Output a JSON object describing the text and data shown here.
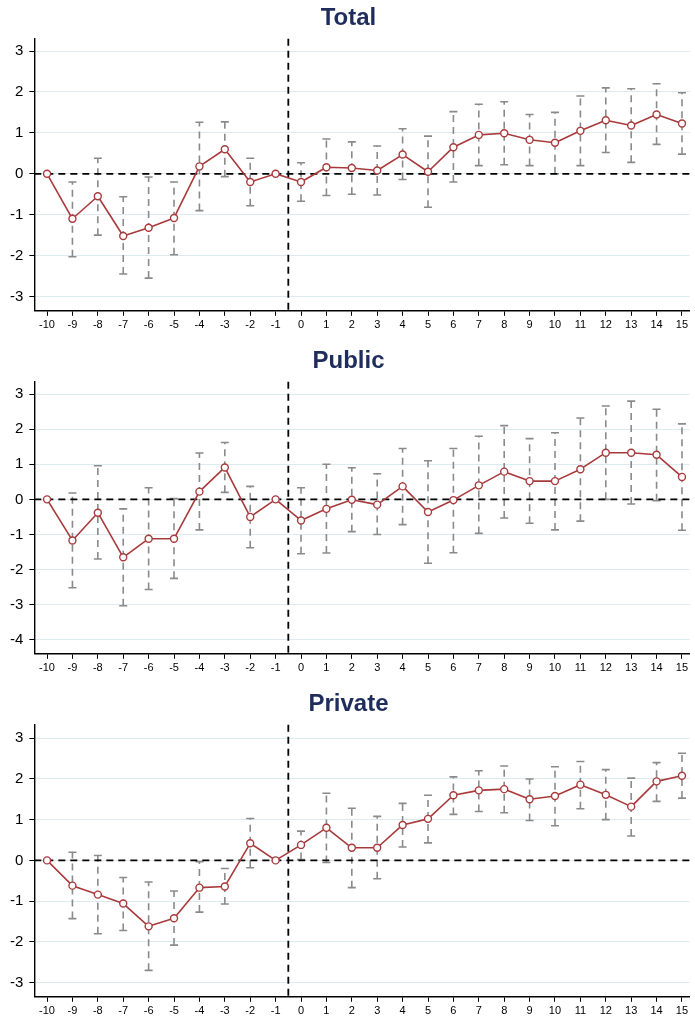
{
  "chart_data": [
    {
      "type": "line",
      "title": "Total",
      "x": [
        -10,
        -9,
        -8,
        -7,
        -6,
        -5,
        -4,
        -3,
        -2,
        -1,
        0,
        1,
        2,
        3,
        4,
        5,
        6,
        7,
        8,
        9,
        10,
        11,
        12,
        13,
        14,
        15
      ],
      "series": [
        {
          "color": "#a83a3c",
          "values": [
            0,
            -1.1,
            -0.55,
            -1.52,
            -1.32,
            -1.08,
            0.18,
            0.6,
            -0.2,
            0,
            -0.2,
            0.16,
            0.14,
            0.08,
            0.47,
            0.05,
            0.65,
            0.95,
            0.99,
            0.83,
            0.76,
            1.05,
            1.31,
            1.18,
            1.45,
            1.23
          ],
          "errors": [
            null,
            [
              -2.03,
              -0.2
            ],
            [
              -1.5,
              0.38
            ],
            [
              -2.45,
              -0.56
            ],
            [
              -2.55,
              -0.08
            ],
            [
              -1.98,
              -0.2
            ],
            [
              -0.9,
              1.26
            ],
            [
              -0.07,
              1.27
            ],
            [
              -0.78,
              0.38
            ],
            null,
            [
              -0.67,
              0.27
            ],
            [
              -0.53,
              0.85
            ],
            [
              -0.5,
              0.78
            ],
            [
              -0.52,
              0.68
            ],
            [
              -0.14,
              1.1
            ],
            [
              -0.82,
              0.92
            ],
            [
              -0.2,
              1.52
            ],
            [
              0.2,
              1.7
            ],
            [
              0.22,
              1.76
            ],
            [
              0.2,
              1.45
            ],
            [
              0,
              1.5
            ],
            [
              0.2,
              1.9
            ],
            [
              0.52,
              2.1
            ],
            [
              0.28,
              2.08
            ],
            [
              0.72,
              2.2
            ],
            [
              0.48,
              1.98
            ]
          ]
        }
      ],
      "xlim": [
        -10.5,
        15.3
      ],
      "xticks": [
        -10,
        -9,
        -8,
        -7,
        -6,
        -5,
        -4,
        -3,
        -2,
        -1,
        0,
        1,
        2,
        3,
        4,
        5,
        6,
        7,
        8,
        9,
        10,
        11,
        12,
        13,
        14,
        15
      ],
      "ylim": [
        -3.35,
        3.3
      ],
      "yticks": [
        -3,
        -2,
        -1,
        0,
        1,
        2,
        3
      ],
      "grid": "y",
      "marker": "circle",
      "line_style": "solid",
      "legend": false,
      "ref_lines": [
        {
          "axis": "x",
          "value": -0.5,
          "line_style": "dashed",
          "color": "#000000"
        },
        {
          "axis": "y",
          "value": 0,
          "line_style": "dashed",
          "color": "#000000"
        }
      ]
    },
    {
      "type": "line",
      "title": "Public",
      "x": [
        -10,
        -9,
        -8,
        -7,
        -6,
        -5,
        -4,
        -3,
        -2,
        -1,
        0,
        1,
        2,
        3,
        4,
        5,
        6,
        7,
        8,
        9,
        10,
        11,
        12,
        13,
        14,
        15
      ],
      "series": [
        {
          "color": "#a83a3c",
          "values": [
            0,
            -1.17,
            -0.38,
            -1.65,
            -1.12,
            -1.12,
            0.22,
            0.91,
            -0.5,
            0,
            -0.6,
            -0.27,
            -0.01,
            -0.15,
            0.37,
            -0.36,
            -0.02,
            0.4,
            0.79,
            0.52,
            0.52,
            0.86,
            1.33,
            1.33,
            1.27,
            0.64
          ],
          "errors": [
            null,
            [
              -2.52,
              0.18
            ],
            [
              -1.7,
              0.96
            ],
            [
              -3.03,
              -0.27
            ],
            [
              -2.57,
              0.33
            ],
            [
              -2.25,
              0.02
            ],
            [
              -0.87,
              1.32
            ],
            [
              0.2,
              1.62
            ],
            [
              -1.38,
              0.37
            ],
            null,
            [
              -1.55,
              0.33
            ],
            [
              -1.53,
              1.0
            ],
            [
              -0.92,
              0.9
            ],
            [
              -1.0,
              0.73
            ],
            [
              -0.72,
              1.45
            ],
            [
              -1.82,
              1.1
            ],
            [
              -1.52,
              1.45
            ],
            [
              -0.97,
              1.8
            ],
            [
              -0.53,
              2.1
            ],
            [
              -0.68,
              1.73
            ],
            [
              -0.87,
              1.9
            ],
            [
              -0.62,
              2.32
            ],
            [
              0,
              2.66
            ],
            [
              -0.13,
              2.8
            ],
            [
              -0.04,
              2.57
            ],
            [
              -0.88,
              2.15
            ]
          ]
        }
      ],
      "xlim": [
        -10.5,
        15.3
      ],
      "xticks": [
        -10,
        -9,
        -8,
        -7,
        -6,
        -5,
        -4,
        -3,
        -2,
        -1,
        0,
        1,
        2,
        3,
        4,
        5,
        6,
        7,
        8,
        9,
        10,
        11,
        12,
        13,
        14,
        15
      ],
      "ylim": [
        -4.4,
        3.35
      ],
      "yticks": [
        -4,
        -3,
        -2,
        -1,
        0,
        1,
        2,
        3
      ],
      "grid": "y",
      "marker": "circle",
      "line_style": "solid",
      "legend": false,
      "ref_lines": [
        {
          "axis": "x",
          "value": -0.5,
          "line_style": "dashed",
          "color": "#000000"
        },
        {
          "axis": "y",
          "value": 0,
          "line_style": "dashed",
          "color": "#000000"
        }
      ]
    },
    {
      "type": "line",
      "title": "Private",
      "x": [
        -10,
        -9,
        -8,
        -7,
        -6,
        -5,
        -4,
        -3,
        -2,
        -1,
        0,
        1,
        2,
        3,
        4,
        5,
        6,
        7,
        8,
        9,
        10,
        11,
        12,
        13,
        14,
        15
      ],
      "series": [
        {
          "color": "#a83a3c",
          "values": [
            0,
            -0.62,
            -0.84,
            -1.06,
            -1.62,
            -1.42,
            -0.67,
            -0.64,
            0.42,
            0,
            0.38,
            0.8,
            0.31,
            0.31,
            0.87,
            1.02,
            1.6,
            1.72,
            1.75,
            1.5,
            1.58,
            1.86,
            1.61,
            1.32,
            1.94,
            2.08
          ],
          "errors": [
            null,
            [
              -1.43,
              0.2
            ],
            [
              -1.8,
              0.12
            ],
            [
              -1.72,
              -0.42
            ],
            [
              -2.7,
              -0.53
            ],
            [
              -2.08,
              -0.75
            ],
            [
              -1.27,
              -0.03
            ],
            [
              -1.07,
              -0.2
            ],
            [
              -0.18,
              1.03
            ],
            null,
            [
              0.02,
              0.72
            ],
            [
              -0.05,
              1.65
            ],
            [
              -0.67,
              1.28
            ],
            [
              -0.45,
              1.08
            ],
            [
              0.33,
              1.4
            ],
            [
              0.43,
              1.6
            ],
            [
              1.13,
              2.05
            ],
            [
              1.2,
              2.2
            ],
            [
              1.17,
              2.32
            ],
            [
              0.98,
              2.0
            ],
            [
              0.85,
              2.3
            ],
            [
              1.27,
              2.43
            ],
            [
              1.0,
              2.23
            ],
            [
              0.6,
              2.02
            ],
            [
              1.45,
              2.4
            ],
            [
              1.53,
              2.63
            ]
          ]
        }
      ],
      "xlim": [
        -10.5,
        15.3
      ],
      "xticks": [
        -10,
        -9,
        -8,
        -7,
        -6,
        -5,
        -4,
        -3,
        -2,
        -1,
        0,
        1,
        2,
        3,
        4,
        5,
        6,
        7,
        8,
        9,
        10,
        11,
        12,
        13,
        14,
        15
      ],
      "ylim": [
        -3.35,
        3.33
      ],
      "yticks": [
        -3,
        -2,
        -1,
        0,
        1,
        2,
        3
      ],
      "grid": "y",
      "marker": "circle",
      "line_style": "solid",
      "legend": false,
      "ref_lines": [
        {
          "axis": "x",
          "value": -0.5,
          "line_style": "dashed",
          "color": "#000000"
        },
        {
          "axis": "y",
          "value": 0,
          "line_style": "dashed",
          "color": "#000000"
        }
      ]
    }
  ]
}
